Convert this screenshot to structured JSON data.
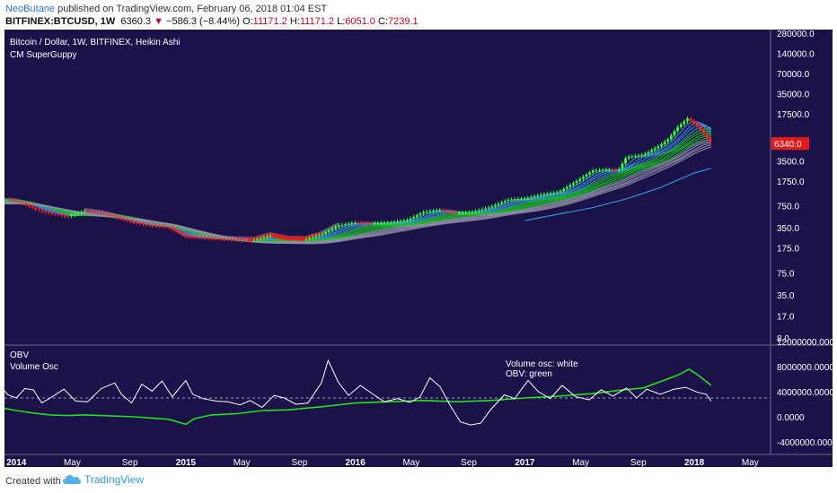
{
  "header": {
    "author": "NeoButane",
    "published_text": " published on TradingView.com, February 06, 2018 01:04 EST",
    "symbol": "BITFINEX:BTCUSD, 1W",
    "last": "6360.3",
    "change_arrow": "▼",
    "change": "−586.3 (−8.44%)",
    "o_label": "O:",
    "o_val": "11171.2",
    "h_label": "H:",
    "h_val": "11171.2",
    "l_label": "L:",
    "l_val": "6051.0",
    "c_label": "C:",
    "c_val": "7239.1"
  },
  "chart_data": [
    {
      "type": "candlestick",
      "title": "Bitcoin / Dollar, 1W, BITFINEX, Heikin Ashi",
      "subtitle": "CM SuperGuppy",
      "y_scale": "log",
      "yticks": [
        "280000.0",
        "140000.0",
        "70000.0",
        "35000.0",
        "17500.0",
        "3500.0",
        "1750.0",
        "750.0",
        "350.0",
        "175.0",
        "75.0",
        "35.0",
        "17.0",
        "8.0"
      ],
      "ytick_values": [
        280000,
        140000,
        70000,
        35000,
        17500,
        3500,
        1750,
        750,
        350,
        175,
        75,
        35,
        17,
        8
      ],
      "last_price_label": "6340.0",
      "last_price": 6340,
      "price_path": [
        {
          "t": 2013.95,
          "p": 950
        },
        {
          "t": 2014.05,
          "p": 800
        },
        {
          "t": 2014.12,
          "p": 650
        },
        {
          "t": 2014.2,
          "p": 580
        },
        {
          "t": 2014.3,
          "p": 520
        },
        {
          "t": 2014.4,
          "p": 620
        },
        {
          "t": 2014.5,
          "p": 580
        },
        {
          "t": 2014.6,
          "p": 500
        },
        {
          "t": 2014.7,
          "p": 420
        },
        {
          "t": 2014.8,
          "p": 380
        },
        {
          "t": 2014.9,
          "p": 360
        },
        {
          "t": 2015.0,
          "p": 260
        },
        {
          "t": 2015.1,
          "p": 250
        },
        {
          "t": 2015.2,
          "p": 240
        },
        {
          "t": 2015.3,
          "p": 235
        },
        {
          "t": 2015.4,
          "p": 230
        },
        {
          "t": 2015.5,
          "p": 270
        },
        {
          "t": 2015.6,
          "p": 240
        },
        {
          "t": 2015.7,
          "p": 235
        },
        {
          "t": 2015.8,
          "p": 280
        },
        {
          "t": 2015.9,
          "p": 380
        },
        {
          "t": 2016.0,
          "p": 420
        },
        {
          "t": 2016.1,
          "p": 410
        },
        {
          "t": 2016.2,
          "p": 420
        },
        {
          "t": 2016.3,
          "p": 450
        },
        {
          "t": 2016.4,
          "p": 600
        },
        {
          "t": 2016.5,
          "p": 650
        },
        {
          "t": 2016.6,
          "p": 580
        },
        {
          "t": 2016.7,
          "p": 610
        },
        {
          "t": 2016.8,
          "p": 720
        },
        {
          "t": 2016.9,
          "p": 920
        },
        {
          "t": 2017.0,
          "p": 960
        },
        {
          "t": 2017.1,
          "p": 1100
        },
        {
          "t": 2017.2,
          "p": 1200
        },
        {
          "t": 2017.3,
          "p": 1700
        },
        {
          "t": 2017.4,
          "p": 2500
        },
        {
          "t": 2017.5,
          "p": 2600
        },
        {
          "t": 2017.55,
          "p": 2500
        },
        {
          "t": 2017.6,
          "p": 4000
        },
        {
          "t": 2017.7,
          "p": 4300
        },
        {
          "t": 2017.8,
          "p": 6000
        },
        {
          "t": 2017.85,
          "p": 7500
        },
        {
          "t": 2017.9,
          "p": 11000
        },
        {
          "t": 2017.96,
          "p": 15000
        },
        {
          "t": 2018.02,
          "p": 11500
        },
        {
          "t": 2018.07,
          "p": 8000
        },
        {
          "t": 2018.1,
          "p": 6340
        }
      ],
      "slow_ma": [
        {
          "t": 2017.0,
          "p": 450
        },
        {
          "t": 2017.2,
          "p": 560
        },
        {
          "t": 2017.4,
          "p": 700
        },
        {
          "t": 2017.6,
          "p": 950
        },
        {
          "t": 2017.8,
          "p": 1400
        },
        {
          "t": 2018.0,
          "p": 2300
        },
        {
          "t": 2018.1,
          "p": 2700
        }
      ]
    },
    {
      "type": "line",
      "title": "OBV",
      "subtitle": "Volume Osc",
      "legend": [
        "Volume osc: white",
        "OBV: green"
      ],
      "legend_position": "top-right",
      "yticks": [
        "12000000.0000",
        "8000000.0000",
        "4000000.0000",
        "0.0000",
        "-4000000.0000"
      ],
      "ytick_values": [
        12000000,
        8000000,
        4000000,
        0,
        -4000000
      ],
      "reference_line": 3000000,
      "series": [
        {
          "name": "OBV",
          "color": "#22e01a",
          "points": [
            {
              "t": 2013.9,
              "v": 1500000
            },
            {
              "t": 2014.0,
              "v": 1000000
            },
            {
              "t": 2014.1,
              "v": 600000
            },
            {
              "t": 2014.2,
              "v": 300000
            },
            {
              "t": 2014.3,
              "v": 200000
            },
            {
              "t": 2014.4,
              "v": 300000
            },
            {
              "t": 2014.5,
              "v": 200000
            },
            {
              "t": 2014.6,
              "v": 100000
            },
            {
              "t": 2014.7,
              "v": 0
            },
            {
              "t": 2014.8,
              "v": -200000
            },
            {
              "t": 2014.9,
              "v": -400000
            },
            {
              "t": 2015.0,
              "v": -1200000
            },
            {
              "t": 2015.05,
              "v": -300000
            },
            {
              "t": 2015.15,
              "v": 300000
            },
            {
              "t": 2015.3,
              "v": 500000
            },
            {
              "t": 2015.45,
              "v": 1000000
            },
            {
              "t": 2015.6,
              "v": 1100000
            },
            {
              "t": 2015.8,
              "v": 1600000
            },
            {
              "t": 2015.9,
              "v": 1900000
            },
            {
              "t": 2016.0,
              "v": 2200000
            },
            {
              "t": 2016.2,
              "v": 2400000
            },
            {
              "t": 2016.4,
              "v": 2600000
            },
            {
              "t": 2016.6,
              "v": 2400000
            },
            {
              "t": 2016.8,
              "v": 2600000
            },
            {
              "t": 2017.0,
              "v": 3000000
            },
            {
              "t": 2017.2,
              "v": 3300000
            },
            {
              "t": 2017.4,
              "v": 3700000
            },
            {
              "t": 2017.55,
              "v": 4200000
            },
            {
              "t": 2017.7,
              "v": 4600000
            },
            {
              "t": 2017.8,
              "v": 5600000
            },
            {
              "t": 2017.9,
              "v": 6600000
            },
            {
              "t": 2017.97,
              "v": 7600000
            },
            {
              "t": 2018.03,
              "v": 6500000
            },
            {
              "t": 2018.1,
              "v": 5000000
            }
          ]
        },
        {
          "name": "Volume Osc",
          "color": "#ffffff",
          "points": [
            {
              "t": 2013.9,
              "v": 5000000
            },
            {
              "t": 2013.95,
              "v": 3500000
            },
            {
              "t": 2014.0,
              "v": 3000000
            },
            {
              "t": 2014.05,
              "v": 4500000
            },
            {
              "t": 2014.1,
              "v": 4300000
            },
            {
              "t": 2014.15,
              "v": 2200000
            },
            {
              "t": 2014.2,
              "v": 3000000
            },
            {
              "t": 2014.28,
              "v": 4400000
            },
            {
              "t": 2014.35,
              "v": 2500000
            },
            {
              "t": 2014.42,
              "v": 2400000
            },
            {
              "t": 2014.5,
              "v": 4500000
            },
            {
              "t": 2014.58,
              "v": 5400000
            },
            {
              "t": 2014.62,
              "v": 3600000
            },
            {
              "t": 2014.68,
              "v": 2200000
            },
            {
              "t": 2014.74,
              "v": 5200000
            },
            {
              "t": 2014.8,
              "v": 4100000
            },
            {
              "t": 2014.86,
              "v": 5700000
            },
            {
              "t": 2014.92,
              "v": 3200000
            },
            {
              "t": 2015.0,
              "v": 5800000
            },
            {
              "t": 2015.04,
              "v": 3600000
            },
            {
              "t": 2015.1,
              "v": 2900000
            },
            {
              "t": 2015.18,
              "v": 2500000
            },
            {
              "t": 2015.25,
              "v": 2400000
            },
            {
              "t": 2015.32,
              "v": 1900000
            },
            {
              "t": 2015.38,
              "v": 2600000
            },
            {
              "t": 2015.45,
              "v": 1500000
            },
            {
              "t": 2015.52,
              "v": 3400000
            },
            {
              "t": 2015.58,
              "v": 3000000
            },
            {
              "t": 2015.65,
              "v": 2000000
            },
            {
              "t": 2015.72,
              "v": 2200000
            },
            {
              "t": 2015.8,
              "v": 5400000
            },
            {
              "t": 2015.84,
              "v": 9000000
            },
            {
              "t": 2015.9,
              "v": 5500000
            },
            {
              "t": 2015.96,
              "v": 3400000
            },
            {
              "t": 2016.03,
              "v": 5000000
            },
            {
              "t": 2016.1,
              "v": 3700000
            },
            {
              "t": 2016.17,
              "v": 2400000
            },
            {
              "t": 2016.25,
              "v": 2900000
            },
            {
              "t": 2016.32,
              "v": 2300000
            },
            {
              "t": 2016.38,
              "v": 3100000
            },
            {
              "t": 2016.44,
              "v": 6200000
            },
            {
              "t": 2016.5,
              "v": 4800000
            },
            {
              "t": 2016.56,
              "v": 1800000
            },
            {
              "t": 2016.62,
              "v": -800000
            },
            {
              "t": 2016.68,
              "v": -1300000
            },
            {
              "t": 2016.74,
              "v": -1000000
            },
            {
              "t": 2016.8,
              "v": 1200000
            },
            {
              "t": 2016.88,
              "v": 3500000
            },
            {
              "t": 2016.94,
              "v": 2900000
            },
            {
              "t": 2017.02,
              "v": 5800000
            },
            {
              "t": 2017.08,
              "v": 4000000
            },
            {
              "t": 2017.15,
              "v": 2900000
            },
            {
              "t": 2017.22,
              "v": 5000000
            },
            {
              "t": 2017.3,
              "v": 3200000
            },
            {
              "t": 2017.38,
              "v": 2700000
            },
            {
              "t": 2017.45,
              "v": 4300000
            },
            {
              "t": 2017.52,
              "v": 3300000
            },
            {
              "t": 2017.6,
              "v": 4600000
            },
            {
              "t": 2017.66,
              "v": 3000000
            },
            {
              "t": 2017.72,
              "v": 4400000
            },
            {
              "t": 2017.8,
              "v": 3600000
            },
            {
              "t": 2017.88,
              "v": 4400000
            },
            {
              "t": 2017.95,
              "v": 4700000
            },
            {
              "t": 2018.02,
              "v": 3900000
            },
            {
              "t": 2018.07,
              "v": 3600000
            },
            {
              "t": 2018.1,
              "v": 2500000
            }
          ]
        }
      ]
    }
  ],
  "x_axis": {
    "ticks": [
      {
        "label": "2014",
        "t": 2014.0,
        "bold": true
      },
      {
        "label": "May",
        "t": 2014.33,
        "bold": false
      },
      {
        "label": "Sep",
        "t": 2014.67,
        "bold": false
      },
      {
        "label": "2015",
        "t": 2015.0,
        "bold": true
      },
      {
        "label": "May",
        "t": 2015.33,
        "bold": false
      },
      {
        "label": "Sep",
        "t": 2015.67,
        "bold": false
      },
      {
        "label": "2016",
        "t": 2016.0,
        "bold": true
      },
      {
        "label": "May",
        "t": 2016.33,
        "bold": false
      },
      {
        "label": "Sep",
        "t": 2016.67,
        "bold": false
      },
      {
        "label": "2017",
        "t": 2017.0,
        "bold": true
      },
      {
        "label": "May",
        "t": 2017.33,
        "bold": false
      },
      {
        "label": "Sep",
        "t": 2017.67,
        "bold": false
      },
      {
        "label": "2018",
        "t": 2018.0,
        "bold": true
      },
      {
        "label": "May",
        "t": 2018.33,
        "bold": false
      }
    ]
  },
  "footer": {
    "created_with": "Created with",
    "brand": "TradingView"
  },
  "colors": {
    "background": "#1a1248",
    "bull": "#33ff33",
    "bear": "#ff2222",
    "ribbon_green": "#1fbf2a",
    "ribbon_grey": "#8f8fa8",
    "ribbon_red": "#e01010",
    "ribbon_blue": "#3a8fd8",
    "axis_text": "#ffffff"
  }
}
